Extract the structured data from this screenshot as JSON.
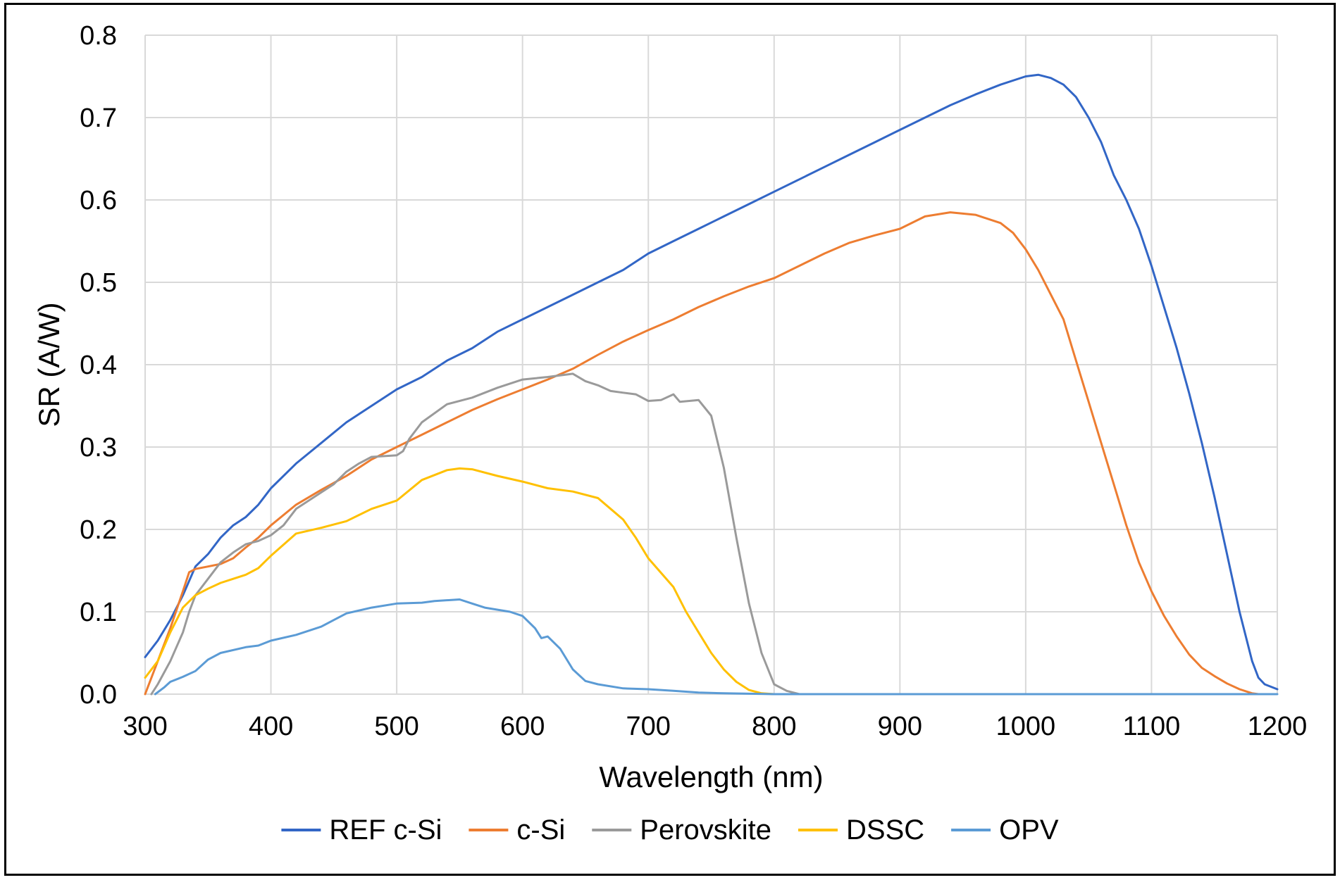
{
  "chart_data": {
    "type": "line",
    "title": "",
    "xlabel": "Wavelength (nm)",
    "ylabel": "SR (A/W)",
    "xlim": [
      300,
      1200
    ],
    "ylim": [
      0,
      0.8
    ],
    "x_ticks": [
      300,
      400,
      500,
      600,
      700,
      800,
      900,
      1000,
      1100,
      1200
    ],
    "x_tick_labels": [
      "300",
      "400",
      "500",
      "600",
      "700",
      "800",
      "900",
      "1000",
      "1100",
      "1200"
    ],
    "y_ticks": [
      0,
      0.1,
      0.2,
      0.3,
      0.4,
      0.5,
      0.6,
      0.7,
      0.8
    ],
    "y_tick_labels": [
      "0.0",
      "0.1",
      "0.2",
      "0.3",
      "0.4",
      "0.5",
      "0.6",
      "0.7",
      "0.8"
    ],
    "grid": true,
    "legend_position": "bottom",
    "series": [
      {
        "name": "REF c-Si",
        "color": "#3266c6",
        "points": [
          [
            300,
            0.045
          ],
          [
            310,
            0.065
          ],
          [
            320,
            0.09
          ],
          [
            330,
            0.12
          ],
          [
            340,
            0.155
          ],
          [
            350,
            0.17
          ],
          [
            360,
            0.19
          ],
          [
            370,
            0.205
          ],
          [
            380,
            0.215
          ],
          [
            390,
            0.23
          ],
          [
            400,
            0.25
          ],
          [
            420,
            0.28
          ],
          [
            440,
            0.305
          ],
          [
            460,
            0.33
          ],
          [
            480,
            0.35
          ],
          [
            500,
            0.37
          ],
          [
            520,
            0.385
          ],
          [
            540,
            0.405
          ],
          [
            560,
            0.42
          ],
          [
            580,
            0.44
          ],
          [
            600,
            0.455
          ],
          [
            620,
            0.47
          ],
          [
            640,
            0.485
          ],
          [
            660,
            0.5
          ],
          [
            680,
            0.515
          ],
          [
            700,
            0.535
          ],
          [
            720,
            0.55
          ],
          [
            740,
            0.565
          ],
          [
            760,
            0.58
          ],
          [
            780,
            0.595
          ],
          [
            800,
            0.61
          ],
          [
            820,
            0.625
          ],
          [
            840,
            0.64
          ],
          [
            860,
            0.655
          ],
          [
            880,
            0.67
          ],
          [
            900,
            0.685
          ],
          [
            920,
            0.7
          ],
          [
            940,
            0.715
          ],
          [
            960,
            0.728
          ],
          [
            980,
            0.74
          ],
          [
            1000,
            0.75
          ],
          [
            1010,
            0.752
          ],
          [
            1020,
            0.748
          ],
          [
            1030,
            0.74
          ],
          [
            1040,
            0.725
          ],
          [
            1050,
            0.7
          ],
          [
            1060,
            0.67
          ],
          [
            1070,
            0.63
          ],
          [
            1080,
            0.6
          ],
          [
            1090,
            0.565
          ],
          [
            1100,
            0.52
          ],
          [
            1110,
            0.47
          ],
          [
            1120,
            0.42
          ],
          [
            1130,
            0.365
          ],
          [
            1140,
            0.305
          ],
          [
            1150,
            0.24
          ],
          [
            1160,
            0.17
          ],
          [
            1170,
            0.1
          ],
          [
            1180,
            0.04
          ],
          [
            1185,
            0.02
          ],
          [
            1190,
            0.012
          ],
          [
            1200,
            0.006
          ]
        ]
      },
      {
        "name": "c-Si",
        "color": "#ed7d31",
        "points": [
          [
            300,
            0.0
          ],
          [
            310,
            0.04
          ],
          [
            320,
            0.08
          ],
          [
            330,
            0.125
          ],
          [
            335,
            0.148
          ],
          [
            340,
            0.152
          ],
          [
            350,
            0.155
          ],
          [
            360,
            0.158
          ],
          [
            370,
            0.165
          ],
          [
            380,
            0.178
          ],
          [
            390,
            0.19
          ],
          [
            400,
            0.205
          ],
          [
            420,
            0.23
          ],
          [
            440,
            0.248
          ],
          [
            460,
            0.265
          ],
          [
            480,
            0.285
          ],
          [
            500,
            0.3
          ],
          [
            520,
            0.315
          ],
          [
            540,
            0.33
          ],
          [
            560,
            0.345
          ],
          [
            580,
            0.358
          ],
          [
            600,
            0.37
          ],
          [
            620,
            0.382
          ],
          [
            640,
            0.395
          ],
          [
            660,
            0.412
          ],
          [
            680,
            0.428
          ],
          [
            700,
            0.442
          ],
          [
            720,
            0.455
          ],
          [
            740,
            0.47
          ],
          [
            760,
            0.483
          ],
          [
            780,
            0.495
          ],
          [
            800,
            0.505
          ],
          [
            820,
            0.52
          ],
          [
            840,
            0.535
          ],
          [
            860,
            0.548
          ],
          [
            880,
            0.557
          ],
          [
            900,
            0.565
          ],
          [
            920,
            0.58
          ],
          [
            940,
            0.585
          ],
          [
            960,
            0.582
          ],
          [
            980,
            0.572
          ],
          [
            990,
            0.56
          ],
          [
            1000,
            0.54
          ],
          [
            1010,
            0.515
          ],
          [
            1020,
            0.485
          ],
          [
            1030,
            0.455
          ],
          [
            1040,
            0.405
          ],
          [
            1050,
            0.355
          ],
          [
            1060,
            0.305
          ],
          [
            1070,
            0.255
          ],
          [
            1080,
            0.205
          ],
          [
            1090,
            0.16
          ],
          [
            1100,
            0.125
          ],
          [
            1110,
            0.095
          ],
          [
            1120,
            0.07
          ],
          [
            1130,
            0.048
          ],
          [
            1140,
            0.032
          ],
          [
            1150,
            0.022
          ],
          [
            1160,
            0.013
          ],
          [
            1170,
            0.006
          ],
          [
            1180,
            0.001
          ],
          [
            1185,
            0.0
          ]
        ]
      },
      {
        "name": "Perovskite",
        "color": "#9a9a9a",
        "points": [
          [
            305,
            0.0
          ],
          [
            310,
            0.012
          ],
          [
            320,
            0.04
          ],
          [
            330,
            0.075
          ],
          [
            335,
            0.1
          ],
          [
            340,
            0.12
          ],
          [
            350,
            0.14
          ],
          [
            360,
            0.16
          ],
          [
            370,
            0.172
          ],
          [
            380,
            0.182
          ],
          [
            390,
            0.186
          ],
          [
            400,
            0.193
          ],
          [
            410,
            0.205
          ],
          [
            420,
            0.225
          ],
          [
            440,
            0.245
          ],
          [
            450,
            0.255
          ],
          [
            460,
            0.27
          ],
          [
            470,
            0.28
          ],
          [
            480,
            0.288
          ],
          [
            490,
            0.289
          ],
          [
            500,
            0.29
          ],
          [
            505,
            0.295
          ],
          [
            510,
            0.31
          ],
          [
            520,
            0.33
          ],
          [
            540,
            0.352
          ],
          [
            560,
            0.36
          ],
          [
            580,
            0.372
          ],
          [
            600,
            0.382
          ],
          [
            620,
            0.385
          ],
          [
            640,
            0.389
          ],
          [
            650,
            0.38
          ],
          [
            660,
            0.375
          ],
          [
            670,
            0.368
          ],
          [
            680,
            0.366
          ],
          [
            690,
            0.364
          ],
          [
            700,
            0.356
          ],
          [
            710,
            0.357
          ],
          [
            720,
            0.364
          ],
          [
            725,
            0.355
          ],
          [
            740,
            0.357
          ],
          [
            750,
            0.338
          ],
          [
            760,
            0.275
          ],
          [
            770,
            0.19
          ],
          [
            780,
            0.11
          ],
          [
            790,
            0.05
          ],
          [
            800,
            0.012
          ],
          [
            810,
            0.004
          ],
          [
            820,
            0.0
          ]
        ]
      },
      {
        "name": "DSSC",
        "color": "#ffc000",
        "points": [
          [
            300,
            0.02
          ],
          [
            310,
            0.04
          ],
          [
            320,
            0.075
          ],
          [
            330,
            0.105
          ],
          [
            340,
            0.12
          ],
          [
            350,
            0.128
          ],
          [
            360,
            0.135
          ],
          [
            370,
            0.14
          ],
          [
            380,
            0.145
          ],
          [
            390,
            0.153
          ],
          [
            400,
            0.168
          ],
          [
            420,
            0.195
          ],
          [
            440,
            0.202
          ],
          [
            460,
            0.21
          ],
          [
            480,
            0.225
          ],
          [
            500,
            0.235
          ],
          [
            520,
            0.26
          ],
          [
            540,
            0.272
          ],
          [
            550,
            0.274
          ],
          [
            560,
            0.273
          ],
          [
            580,
            0.265
          ],
          [
            600,
            0.258
          ],
          [
            620,
            0.25
          ],
          [
            640,
            0.246
          ],
          [
            660,
            0.238
          ],
          [
            670,
            0.225
          ],
          [
            680,
            0.212
          ],
          [
            690,
            0.19
          ],
          [
            700,
            0.165
          ],
          [
            720,
            0.13
          ],
          [
            730,
            0.1
          ],
          [
            740,
            0.075
          ],
          [
            750,
            0.05
          ],
          [
            760,
            0.03
          ],
          [
            770,
            0.015
          ],
          [
            780,
            0.005
          ],
          [
            790,
            0.001
          ],
          [
            800,
            0.0
          ]
        ]
      },
      {
        "name": "OPV",
        "color": "#5b9bd5",
        "points": [
          [
            308,
            0.0
          ],
          [
            315,
            0.008
          ],
          [
            320,
            0.015
          ],
          [
            330,
            0.021
          ],
          [
            340,
            0.028
          ],
          [
            350,
            0.042
          ],
          [
            360,
            0.05
          ],
          [
            380,
            0.057
          ],
          [
            390,
            0.059
          ],
          [
            400,
            0.065
          ],
          [
            420,
            0.072
          ],
          [
            440,
            0.082
          ],
          [
            450,
            0.09
          ],
          [
            460,
            0.098
          ],
          [
            480,
            0.105
          ],
          [
            500,
            0.11
          ],
          [
            520,
            0.111
          ],
          [
            530,
            0.113
          ],
          [
            550,
            0.115
          ],
          [
            560,
            0.11
          ],
          [
            570,
            0.105
          ],
          [
            590,
            0.1
          ],
          [
            600,
            0.095
          ],
          [
            610,
            0.08
          ],
          [
            615,
            0.068
          ],
          [
            620,
            0.07
          ],
          [
            630,
            0.055
          ],
          [
            640,
            0.03
          ],
          [
            650,
            0.016
          ],
          [
            660,
            0.012
          ],
          [
            680,
            0.007
          ],
          [
            700,
            0.006
          ],
          [
            720,
            0.004
          ],
          [
            740,
            0.002
          ],
          [
            760,
            0.001
          ],
          [
            800,
            0.0
          ],
          [
            1200,
            0.0
          ]
        ]
      }
    ]
  }
}
